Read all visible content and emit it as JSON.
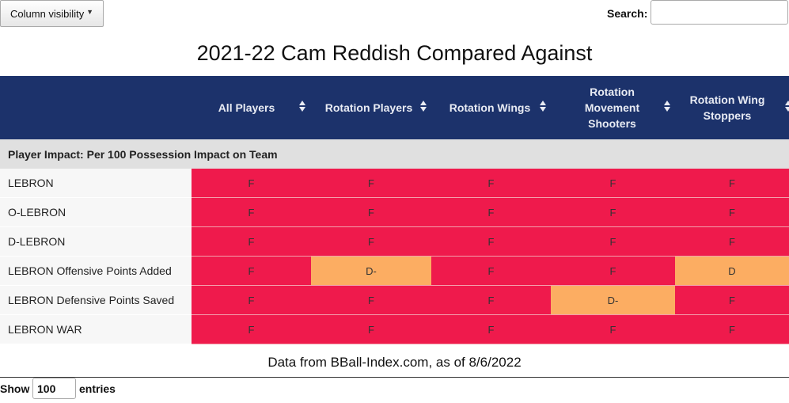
{
  "toolbar": {
    "column_visibility_label": "Column visibility",
    "search_label": "Search:",
    "search_value": ""
  },
  "title": "2021-22 Cam Reddish Compared Against",
  "headers": [
    "",
    "All Players",
    "Rotation Players",
    "Rotation Wings",
    "Rotation Movement Shooters",
    "Rotation Wing Stoppers"
  ],
  "section_label": "Player Impact: Per 100 Possession Impact on Team",
  "rows": [
    {
      "label": "LEBRON",
      "grades": [
        "F",
        "F",
        "F",
        "F",
        "F"
      ]
    },
    {
      "label": "O-LEBRON",
      "grades": [
        "F",
        "F",
        "F",
        "F",
        "F"
      ]
    },
    {
      "label": "D-LEBRON",
      "grades": [
        "F",
        "F",
        "F",
        "F",
        "F"
      ]
    },
    {
      "label": "LEBRON Offensive Points Added",
      "grades": [
        "F",
        "D-",
        "F",
        "F",
        "D"
      ]
    },
    {
      "label": "LEBRON Defensive Points Saved",
      "grades": [
        "F",
        "F",
        "F",
        "D-",
        "F"
      ]
    },
    {
      "label": "LEBRON WAR",
      "grades": [
        "F",
        "F",
        "F",
        "F",
        "F"
      ]
    }
  ],
  "grade_colors": {
    "F": "#ef1a4c",
    "D-": "#fcad62",
    "D": "#fcad62"
  },
  "header_color": "#1c326b",
  "source_note": "Data from BBall-Index.com, as of 8/6/2022",
  "pagination": {
    "show_label": "Show",
    "entries_value": "100",
    "entries_label": "entries"
  }
}
